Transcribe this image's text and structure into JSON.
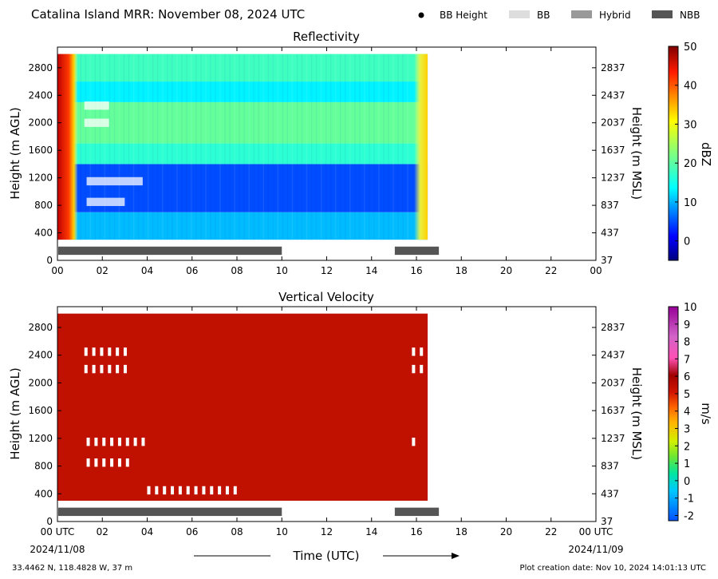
{
  "title": "Catalina Island MRR:  November 08, 2024 UTC",
  "legend": [
    {
      "label": "BB Height",
      "kind": "dot",
      "color": "#000000"
    },
    {
      "label": "BB",
      "kind": "box",
      "color": "#dddddd"
    },
    {
      "label": "Hybrid",
      "kind": "box",
      "color": "#999999"
    },
    {
      "label": "NBB",
      "kind": "box",
      "color": "#555555"
    }
  ],
  "xaxis": {
    "label": "Time (UTC)",
    "range": [
      0,
      24
    ],
    "ticks_top": [
      "00",
      "02",
      "04",
      "06",
      "08",
      "10",
      "12",
      "14",
      "16",
      "18",
      "20",
      "22",
      "00"
    ],
    "ticks_bottom": [
      "00 UTC",
      "02",
      "04",
      "06",
      "08",
      "10",
      "12",
      "14",
      "16",
      "18",
      "20",
      "22",
      "00 UTC"
    ],
    "date_start": "2024/11/08",
    "date_end": "2024/11/09"
  },
  "footer": {
    "location": "33.4462 N, 118.4828 W, 37 m",
    "created": "Plot creation date: Nov 10, 2024 14:01:13 UTC"
  },
  "chart_data": [
    {
      "type": "heatmap",
      "title": "Reflectivity",
      "ylabel": "Height (m AGL)",
      "ylabel_right": "Height (m MSL)",
      "yticks": [
        "0",
        "400",
        "800",
        "1200",
        "1600",
        "2000",
        "2400",
        "2800"
      ],
      "yticks_right": [
        "37",
        "437",
        "837",
        "1237",
        "1637",
        "2037",
        "2437",
        "2837"
      ],
      "ylim": [
        0,
        3100
      ],
      "xlim": [
        0,
        24
      ],
      "data_extent": {
        "x": [
          0,
          16.5
        ],
        "y": [
          300,
          3000
        ]
      },
      "colorbar": {
        "label": "dBZ",
        "range": [
          -5,
          50
        ],
        "ticks": [
          "50",
          "40",
          "30",
          "20",
          "10",
          "0"
        ],
        "tick_values": [
          50,
          40,
          30,
          20,
          10,
          0
        ]
      },
      "layers": [
        {
          "height_range": [
            300,
            700
          ],
          "dbz": 12
        },
        {
          "height_range": [
            700,
            1400
          ],
          "dbz": 6
        },
        {
          "height_range": [
            1400,
            1700
          ],
          "dbz": 18
        },
        {
          "height_range": [
            1700,
            2300
          ],
          "dbz": 21
        },
        {
          "height_range": [
            2300,
            2600
          ],
          "dbz": 15
        },
        {
          "height_range": [
            2600,
            3000
          ],
          "dbz": 19
        }
      ],
      "edge_bands": [
        {
          "time_range": [
            0,
            0.7
          ],
          "dbz": 45
        },
        {
          "time_range": [
            15.9,
            16.5
          ],
          "dbz": 28
        }
      ],
      "nbb_periods": [
        [
          0,
          10
        ],
        [
          15,
          17
        ]
      ]
    },
    {
      "type": "heatmap",
      "title": "Vertical Velocity",
      "ylabel": "Height (m AGL)",
      "ylabel_right": "Height (m MSL)",
      "yticks": [
        "0",
        "400",
        "800",
        "1200",
        "1600",
        "2000",
        "2400",
        "2800"
      ],
      "yticks_right": [
        "37",
        "437",
        "837",
        "1237",
        "1637",
        "2037",
        "2437",
        "2837"
      ],
      "ylim": [
        0,
        3100
      ],
      "xlim": [
        0,
        24
      ],
      "data_extent": {
        "x": [
          0,
          16.5
        ],
        "y": [
          300,
          3000
        ]
      },
      "colorbar": {
        "label": "m/s",
        "range": [
          -2.3,
          10
        ],
        "ticks": [
          "10",
          "9",
          "8",
          "7",
          "6",
          "5",
          "4",
          "3",
          "2",
          "1",
          "0",
          "-1",
          "-2"
        ],
        "tick_values": [
          10,
          9,
          8,
          7,
          6,
          5,
          4,
          3,
          2,
          1,
          0,
          -1,
          -2
        ]
      },
      "fill_value_ms": 6,
      "fill_color": "#c01000",
      "nbb_periods": [
        [
          0,
          10
        ],
        [
          15,
          17
        ]
      ]
    }
  ]
}
